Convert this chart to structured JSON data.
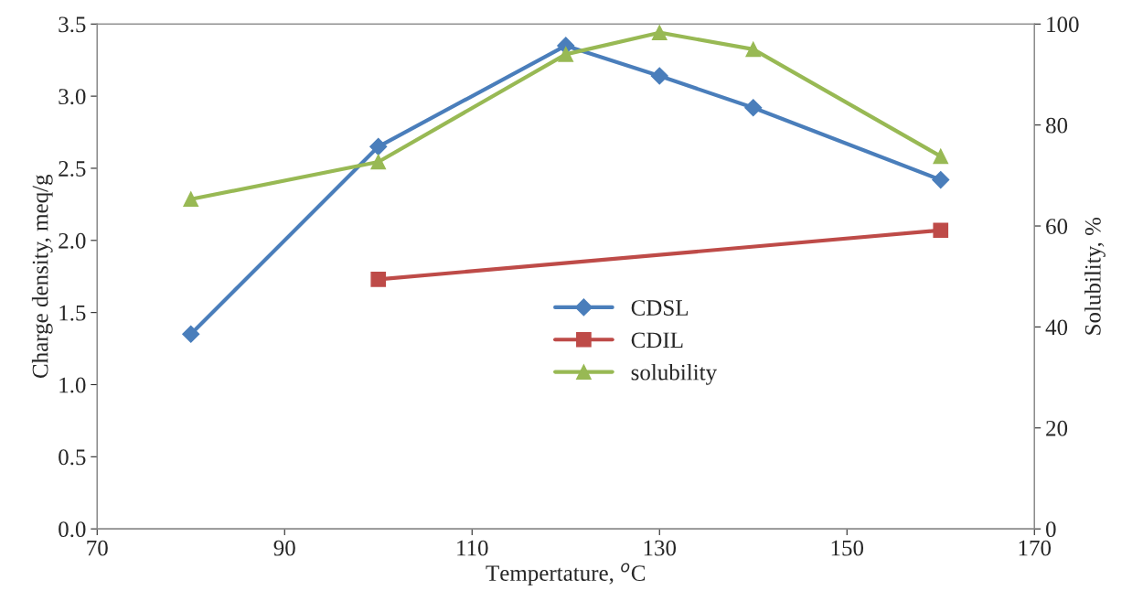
{
  "chart_data": {
    "type": "line",
    "xlabel": "Tempertature, $^{o}$C",
    "ylabel": "Charge density, meq/g",
    "y2label": "Solubility, %",
    "series": [
      {
        "name": "CDSL",
        "color": "#4a7ebb",
        "marker": "diamond",
        "x": [
          80,
          100,
          120,
          130,
          140,
          160
        ],
        "values": [
          1.35,
          2.65,
          3.35,
          3.14,
          2.92,
          2.42
        ]
      },
      {
        "name": "CDIL",
        "color": "#be4b48",
        "marker": "square",
        "x": [
          100,
          160
        ],
        "values": [
          1.73,
          2.07
        ]
      },
      {
        "name": "solubility",
        "color": "#98b954",
        "marker": "triangle",
        "axis": "y2",
        "x": [
          80,
          100,
          120,
          130,
          140,
          160
        ],
        "values": [
          65.3,
          72.7,
          94,
          98.3,
          95,
          73.8
        ]
      }
    ],
    "xlim": [
      70,
      170
    ],
    "xticks": [
      70,
      90,
      110,
      130,
      150,
      170
    ],
    "ylim": [
      0,
      3.5
    ],
    "yticks": [
      {
        "value": 0,
        "label": "0.0"
      },
      {
        "value": 0.5,
        "label": "0.5"
      },
      {
        "value": 1,
        "label": "1.0"
      },
      {
        "value": 1.5,
        "label": "1.5"
      },
      {
        "value": 2,
        "label": "2.0"
      },
      {
        "value": 2.5,
        "label": "2.5"
      },
      {
        "value": 3,
        "label": "3.0"
      },
      {
        "value": 3.5,
        "label": "3.5"
      }
    ],
    "y2lim": [
      0,
      100
    ],
    "y2ticks": [
      0,
      20,
      40,
      60,
      80,
      100
    ],
    "grid": false,
    "legend": "center",
    "line_style": "solid"
  }
}
